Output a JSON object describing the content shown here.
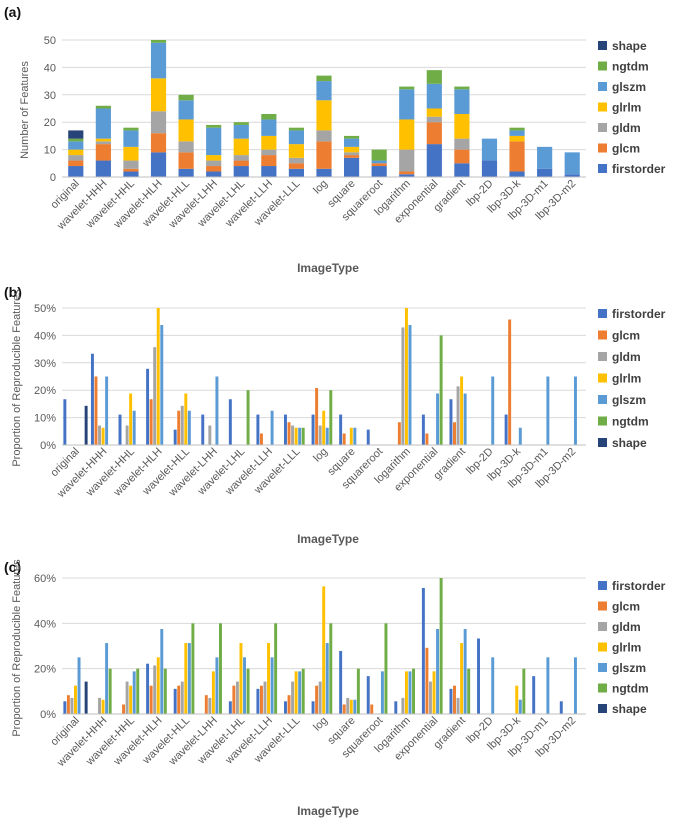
{
  "colors": {
    "firstorder": "#4472c4",
    "glcm": "#ed7d31",
    "gldm": "#a5a5a5",
    "glrlm": "#ffc000",
    "glszm": "#5b9bd5",
    "ngtdm": "#70ad47",
    "shape": "#264478"
  },
  "chart_data": [
    {
      "label": "(a)",
      "type": "bar",
      "stacked": true,
      "categories": [
        "original",
        "wavelet-HHH",
        "wavelet-HHL",
        "wavelet-HLH",
        "wavelet-HLL",
        "wavelet-LHH",
        "wavelet-LHL",
        "wavelet-LLH",
        "wavelet-LLL",
        "log",
        "square",
        "squareroot",
        "logarithm",
        "exponential",
        "gradient",
        "lbp-2D",
        "lbp-3D-k",
        "lbp-3D-m1",
        "lbp-3D-m2"
      ],
      "ylabel": "Number of Features",
      "xlabel": "ImageType",
      "ylim": [
        0,
        50
      ],
      "yticks": [
        "0",
        "10",
        "20",
        "30",
        "40",
        "50"
      ],
      "legend_order": [
        "shape",
        "ngtdm",
        "glszm",
        "glrlm",
        "gldm",
        "glcm",
        "firstorder"
      ],
      "series": [
        {
          "name": "firstorder",
          "values": [
            4,
            6,
            2,
            9,
            3,
            2,
            4,
            4,
            3,
            3,
            7,
            4,
            1,
            12,
            5,
            6,
            2,
            3,
            1
          ]
        },
        {
          "name": "glcm",
          "values": [
            2,
            6,
            1,
            7,
            6,
            2,
            2,
            4,
            2,
            10,
            1,
            1,
            1,
            8,
            5,
            0,
            11,
            0,
            0
          ]
        },
        {
          "name": "gldm",
          "values": [
            2,
            1,
            3,
            8,
            4,
            2,
            2,
            2,
            2,
            4,
            1,
            0,
            8,
            2,
            4,
            0,
            0,
            0,
            0
          ]
        },
        {
          "name": "glrlm",
          "values": [
            2,
            1,
            5,
            12,
            8,
            2,
            6,
            5,
            5,
            11,
            2,
            0,
            11,
            3,
            9,
            0,
            2,
            0,
            0
          ]
        },
        {
          "name": "glszm",
          "values": [
            3,
            11,
            6,
            13,
            7,
            10,
            5,
            6,
            5,
            7,
            3,
            1,
            11,
            9,
            9,
            8,
            2,
            8,
            8
          ]
        },
        {
          "name": "ngtdm",
          "values": [
            1,
            1,
            1,
            1,
            2,
            1,
            1,
            2,
            1,
            2,
            1,
            4,
            1,
            5,
            1,
            0,
            1,
            0,
            0
          ]
        },
        {
          "name": "shape",
          "values": [
            3,
            0,
            0,
            0,
            0,
            0,
            0,
            0,
            0,
            0,
            0,
            0,
            0,
            0,
            0,
            0,
            0,
            0,
            0
          ]
        }
      ]
    },
    {
      "label": "(b)",
      "type": "bar",
      "stacked": false,
      "categories": [
        "original",
        "wavelet-HHH",
        "wavelet-HHL",
        "wavelet-HLH",
        "wavelet-HLL",
        "wavelet-LHH",
        "wavelet-LHL",
        "wavelet-LLH",
        "wavelet-LLL",
        "log",
        "square",
        "squareroot",
        "logarithm",
        "exponential",
        "gradient",
        "lbp-2D",
        "lbp-3D-k",
        "lbp-3D-m1",
        "lbp-3D-m2"
      ],
      "ylabel": "Proportion of Reproducible Features",
      "xlabel": "ImageType",
      "ylim": [
        0,
        50
      ],
      "yticks": [
        "0%",
        "10%",
        "20%",
        "30%",
        "40%",
        "50%"
      ],
      "legend_order": [
        "firstorder",
        "glcm",
        "gldm",
        "glrlm",
        "glszm",
        "ngtdm",
        "shape"
      ],
      "series": [
        {
          "name": "firstorder",
          "values": [
            16.7,
            33.3,
            11.1,
            27.8,
            5.6,
            11.1,
            16.7,
            11.1,
            11.1,
            11.1,
            11.1,
            5.6,
            0,
            11.1,
            16.7,
            0,
            11.1,
            0,
            0
          ]
        },
        {
          "name": "glcm",
          "values": [
            0,
            25,
            0,
            16.7,
            12.5,
            0,
            0,
            4.2,
            8.3,
            20.8,
            4.2,
            0,
            8.3,
            4.2,
            8.3,
            0,
            45.8,
            0,
            0
          ]
        },
        {
          "name": "gldm",
          "values": [
            0,
            7.1,
            7.1,
            35.7,
            14.3,
            7.1,
            0,
            0,
            7.1,
            7.1,
            0,
            0,
            42.9,
            0,
            21.4,
            0,
            0,
            0,
            0
          ]
        },
        {
          "name": "glrlm",
          "values": [
            0,
            6.3,
            18.8,
            50,
            18.8,
            0,
            0,
            0,
            6.3,
            12.5,
            6.3,
            0,
            50,
            0,
            25,
            0,
            0,
            0,
            0
          ]
        },
        {
          "name": "glszm",
          "values": [
            0,
            25,
            12.5,
            43.8,
            12.5,
            25,
            0,
            12.5,
            6.3,
            6.3,
            6.3,
            0,
            43.8,
            18.8,
            18.8,
            25,
            6.3,
            25,
            25
          ]
        },
        {
          "name": "ngtdm",
          "values": [
            0,
            0,
            0,
            0,
            0,
            0,
            20,
            0,
            6.3,
            20,
            0,
            0,
            0,
            40,
            0,
            0,
            0,
            0,
            0
          ]
        },
        {
          "name": "shape",
          "values": [
            14.3,
            0,
            0,
            0,
            0,
            0,
            0,
            0,
            0,
            0,
            0,
            0,
            0,
            0,
            0,
            0,
            0,
            0,
            0
          ]
        }
      ]
    },
    {
      "label": "(c)",
      "type": "bar",
      "stacked": false,
      "categories": [
        "original",
        "wavelet-HHH",
        "wavelet-HHL",
        "wavelet-HLH",
        "wavelet-HLL",
        "wavelet-LHH",
        "wavelet-LHL",
        "wavelet-LLH",
        "wavelet-LLL",
        "log",
        "square",
        "squareroot",
        "logarithm",
        "exponential",
        "gradient",
        "lbp-2D",
        "lbp-3D-k",
        "lbp-3D-m1",
        "lbp-3D-m2"
      ],
      "ylabel": "Proportion of Reproducible Features",
      "xlabel": "ImageType",
      "ylim": [
        0,
        60
      ],
      "yticks": [
        "0%",
        "20%",
        "40%",
        "60%"
      ],
      "legend_order": [
        "firstorder",
        "glcm",
        "gldm",
        "glrlm",
        "glszm",
        "ngtdm",
        "shape"
      ],
      "series": [
        {
          "name": "firstorder",
          "values": [
            5.6,
            0,
            0,
            22.2,
            11.1,
            0,
            5.6,
            11.1,
            5.6,
            5.6,
            27.8,
            16.7,
            5.6,
            55.6,
            11.1,
            33.3,
            0,
            16.7,
            5.6
          ]
        },
        {
          "name": "glcm",
          "values": [
            8.3,
            0,
            4.2,
            12.5,
            12.5,
            8.3,
            12.5,
            12.5,
            8.3,
            12.5,
            4.2,
            4.2,
            0,
            29.2,
            12.5,
            0,
            0,
            0,
            0
          ]
        },
        {
          "name": "gldm",
          "values": [
            7.1,
            7.1,
            14.3,
            21.4,
            14.3,
            7.1,
            14.3,
            14.3,
            14.3,
            14.3,
            7.1,
            0,
            7.1,
            14.3,
            7.1,
            0,
            0,
            0,
            0
          ]
        },
        {
          "name": "glrlm",
          "values": [
            12.5,
            6.3,
            12.5,
            25,
            31.3,
            18.8,
            31.3,
            31.3,
            18.8,
            56.3,
            6.3,
            0,
            18.8,
            18.8,
            31.3,
            0,
            12.5,
            0,
            0
          ]
        },
        {
          "name": "glszm",
          "values": [
            25,
            31.3,
            18.8,
            37.5,
            31.3,
            25,
            25,
            25,
            18.8,
            31.3,
            6.3,
            18.8,
            18.8,
            37.5,
            37.5,
            25,
            6.3,
            25,
            25
          ]
        },
        {
          "name": "ngtdm",
          "values": [
            0,
            20,
            20,
            20,
            40,
            40,
            20,
            40,
            20,
            40,
            20,
            40,
            20,
            60,
            20,
            0,
            20,
            0,
            0
          ]
        },
        {
          "name": "shape",
          "values": [
            14.3,
            0,
            0,
            0,
            0,
            0,
            0,
            0,
            0,
            0,
            0,
            0,
            0,
            0,
            0,
            0,
            0,
            0,
            0
          ]
        }
      ]
    }
  ]
}
